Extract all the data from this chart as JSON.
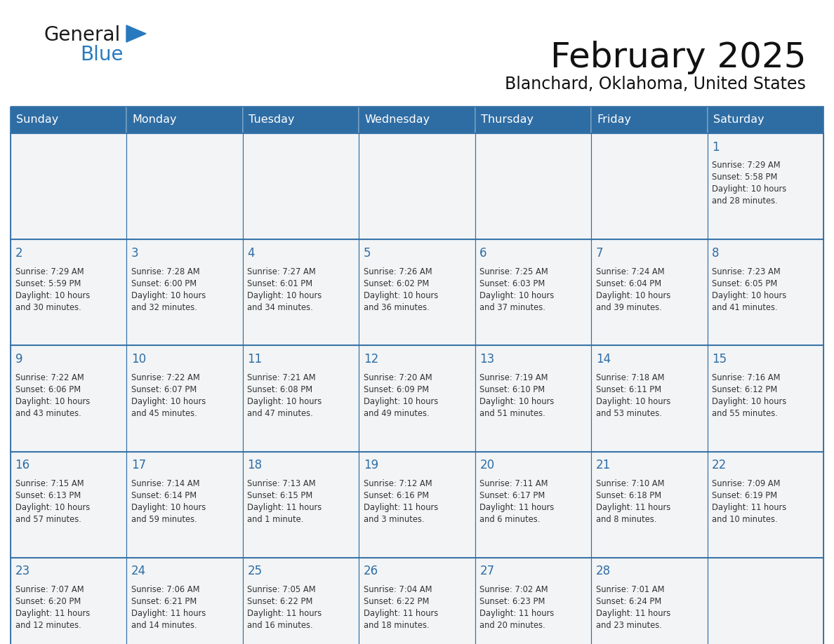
{
  "title": "February 2025",
  "subtitle": "Blanchard, Oklahoma, United States",
  "header_bg": "#2E6DA4",
  "header_text_color": "#FFFFFF",
  "cell_bg": "#F2F4F6",
  "cell_border_color": "#2E6DA4",
  "day_number_color": "#2E6DA4",
  "cell_text_color": "#333333",
  "days_of_week": [
    "Sunday",
    "Monday",
    "Tuesday",
    "Wednesday",
    "Thursday",
    "Friday",
    "Saturday"
  ],
  "weeks": [
    [
      {
        "day": 0,
        "info": ""
      },
      {
        "day": 0,
        "info": ""
      },
      {
        "day": 0,
        "info": ""
      },
      {
        "day": 0,
        "info": ""
      },
      {
        "day": 0,
        "info": ""
      },
      {
        "day": 0,
        "info": ""
      },
      {
        "day": 1,
        "info": "Sunrise: 7:29 AM\nSunset: 5:58 PM\nDaylight: 10 hours\nand 28 minutes."
      }
    ],
    [
      {
        "day": 2,
        "info": "Sunrise: 7:29 AM\nSunset: 5:59 PM\nDaylight: 10 hours\nand 30 minutes."
      },
      {
        "day": 3,
        "info": "Sunrise: 7:28 AM\nSunset: 6:00 PM\nDaylight: 10 hours\nand 32 minutes."
      },
      {
        "day": 4,
        "info": "Sunrise: 7:27 AM\nSunset: 6:01 PM\nDaylight: 10 hours\nand 34 minutes."
      },
      {
        "day": 5,
        "info": "Sunrise: 7:26 AM\nSunset: 6:02 PM\nDaylight: 10 hours\nand 36 minutes."
      },
      {
        "day": 6,
        "info": "Sunrise: 7:25 AM\nSunset: 6:03 PM\nDaylight: 10 hours\nand 37 minutes."
      },
      {
        "day": 7,
        "info": "Sunrise: 7:24 AM\nSunset: 6:04 PM\nDaylight: 10 hours\nand 39 minutes."
      },
      {
        "day": 8,
        "info": "Sunrise: 7:23 AM\nSunset: 6:05 PM\nDaylight: 10 hours\nand 41 minutes."
      }
    ],
    [
      {
        "day": 9,
        "info": "Sunrise: 7:22 AM\nSunset: 6:06 PM\nDaylight: 10 hours\nand 43 minutes."
      },
      {
        "day": 10,
        "info": "Sunrise: 7:22 AM\nSunset: 6:07 PM\nDaylight: 10 hours\nand 45 minutes."
      },
      {
        "day": 11,
        "info": "Sunrise: 7:21 AM\nSunset: 6:08 PM\nDaylight: 10 hours\nand 47 minutes."
      },
      {
        "day": 12,
        "info": "Sunrise: 7:20 AM\nSunset: 6:09 PM\nDaylight: 10 hours\nand 49 minutes."
      },
      {
        "day": 13,
        "info": "Sunrise: 7:19 AM\nSunset: 6:10 PM\nDaylight: 10 hours\nand 51 minutes."
      },
      {
        "day": 14,
        "info": "Sunrise: 7:18 AM\nSunset: 6:11 PM\nDaylight: 10 hours\nand 53 minutes."
      },
      {
        "day": 15,
        "info": "Sunrise: 7:16 AM\nSunset: 6:12 PM\nDaylight: 10 hours\nand 55 minutes."
      }
    ],
    [
      {
        "day": 16,
        "info": "Sunrise: 7:15 AM\nSunset: 6:13 PM\nDaylight: 10 hours\nand 57 minutes."
      },
      {
        "day": 17,
        "info": "Sunrise: 7:14 AM\nSunset: 6:14 PM\nDaylight: 10 hours\nand 59 minutes."
      },
      {
        "day": 18,
        "info": "Sunrise: 7:13 AM\nSunset: 6:15 PM\nDaylight: 11 hours\nand 1 minute."
      },
      {
        "day": 19,
        "info": "Sunrise: 7:12 AM\nSunset: 6:16 PM\nDaylight: 11 hours\nand 3 minutes."
      },
      {
        "day": 20,
        "info": "Sunrise: 7:11 AM\nSunset: 6:17 PM\nDaylight: 11 hours\nand 6 minutes."
      },
      {
        "day": 21,
        "info": "Sunrise: 7:10 AM\nSunset: 6:18 PM\nDaylight: 11 hours\nand 8 minutes."
      },
      {
        "day": 22,
        "info": "Sunrise: 7:09 AM\nSunset: 6:19 PM\nDaylight: 11 hours\nand 10 minutes."
      }
    ],
    [
      {
        "day": 23,
        "info": "Sunrise: 7:07 AM\nSunset: 6:20 PM\nDaylight: 11 hours\nand 12 minutes."
      },
      {
        "day": 24,
        "info": "Sunrise: 7:06 AM\nSunset: 6:21 PM\nDaylight: 11 hours\nand 14 minutes."
      },
      {
        "day": 25,
        "info": "Sunrise: 7:05 AM\nSunset: 6:22 PM\nDaylight: 11 hours\nand 16 minutes."
      },
      {
        "day": 26,
        "info": "Sunrise: 7:04 AM\nSunset: 6:22 PM\nDaylight: 11 hours\nand 18 minutes."
      },
      {
        "day": 27,
        "info": "Sunrise: 7:02 AM\nSunset: 6:23 PM\nDaylight: 11 hours\nand 20 minutes."
      },
      {
        "day": 28,
        "info": "Sunrise: 7:01 AM\nSunset: 6:24 PM\nDaylight: 11 hours\nand 23 minutes."
      },
      {
        "day": 0,
        "info": ""
      }
    ]
  ],
  "logo_general_color": "#1A1A1A",
  "logo_blue_color": "#2979BE",
  "background_color": "#FFFFFF"
}
